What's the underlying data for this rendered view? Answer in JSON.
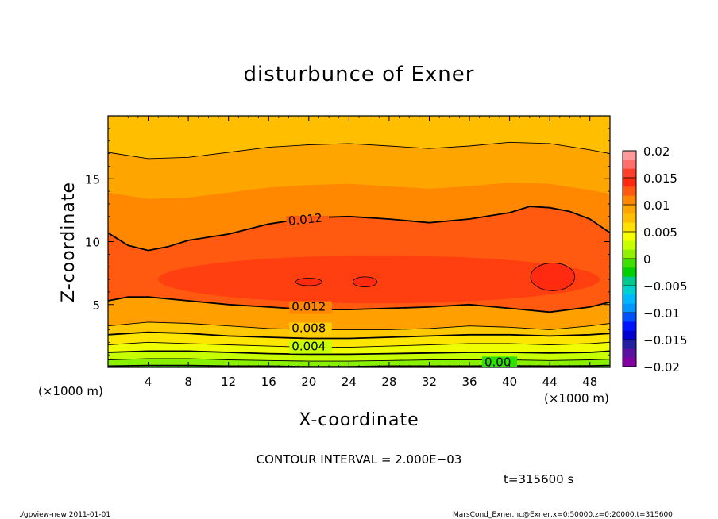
{
  "chart_data": {
    "type": "contour",
    "title": "disturbunce of Exner",
    "xlabel": "X-coordinate",
    "ylabel": "Z-coordinate",
    "x_unit_left": "(×1000 m)",
    "x_unit_right": "(×1000 m)",
    "xlim": [
      0,
      50
    ],
    "ylim": [
      0,
      20
    ],
    "x_ticks": [
      4,
      8,
      12,
      16,
      20,
      24,
      28,
      32,
      36,
      40,
      44,
      48
    ],
    "y_ticks": [
      5,
      10,
      15
    ],
    "contour_labels": [
      {
        "text": "0.012",
        "x": 18.0,
        "y": 11.3
      },
      {
        "text": "0.012",
        "x": 18.3,
        "y": 4.5
      },
      {
        "text": "0.008",
        "x": 18.3,
        "y": 2.8
      },
      {
        "text": "0.004",
        "x": 18.3,
        "y": 1.35
      },
      {
        "text": "0.00",
        "x": 37.5,
        "y": 0.1
      }
    ],
    "contour_lines": [
      {
        "level": 0.012,
        "bold": true,
        "z": [
          [
            0,
            10.7
          ],
          [
            2,
            9.7
          ],
          [
            4,
            9.3
          ],
          [
            6,
            9.6
          ],
          [
            8,
            10.1
          ],
          [
            12,
            10.6
          ],
          [
            16,
            11.4
          ],
          [
            20,
            11.9
          ],
          [
            24,
            12.0
          ],
          [
            28,
            11.8
          ],
          [
            32,
            11.5
          ],
          [
            36,
            11.8
          ],
          [
            40,
            12.3
          ],
          [
            42,
            12.8
          ],
          [
            44,
            12.7
          ],
          [
            46,
            12.4
          ],
          [
            48,
            11.8
          ],
          [
            50,
            10.7
          ]
        ]
      },
      {
        "level": 0.01,
        "bold": false,
        "z": [
          [
            0,
            17.1
          ],
          [
            4,
            16.6
          ],
          [
            8,
            16.7
          ],
          [
            12,
            17.1
          ],
          [
            16,
            17.5
          ],
          [
            20,
            17.7
          ],
          [
            24,
            17.8
          ],
          [
            28,
            17.6
          ],
          [
            32,
            17.4
          ],
          [
            36,
            17.6
          ],
          [
            40,
            17.9
          ],
          [
            44,
            17.8
          ],
          [
            48,
            17.3
          ],
          [
            50,
            17.0
          ]
        ]
      },
      {
        "level": 0.012,
        "bold": true,
        "z": [
          [
            0,
            5.3
          ],
          [
            2,
            5.6
          ],
          [
            4,
            5.6
          ],
          [
            8,
            5.3
          ],
          [
            12,
            5.0
          ],
          [
            16,
            4.8
          ],
          [
            20,
            4.6
          ],
          [
            24,
            4.6
          ],
          [
            28,
            4.7
          ],
          [
            32,
            4.8
          ],
          [
            36,
            5.0
          ],
          [
            40,
            4.7
          ],
          [
            44,
            4.4
          ],
          [
            48,
            4.8
          ],
          [
            50,
            5.2
          ]
        ]
      },
      {
        "level": 0.01,
        "bold": false,
        "z": [
          [
            0,
            3.3
          ],
          [
            4,
            3.6
          ],
          [
            8,
            3.5
          ],
          [
            12,
            3.3
          ],
          [
            16,
            3.1
          ],
          [
            20,
            3.0
          ],
          [
            24,
            3.0
          ],
          [
            28,
            3.0
          ],
          [
            32,
            3.1
          ],
          [
            36,
            3.3
          ],
          [
            40,
            3.2
          ],
          [
            44,
            3.0
          ],
          [
            48,
            3.3
          ],
          [
            50,
            3.5
          ]
        ]
      },
      {
        "level": 0.008,
        "bold": true,
        "z": [
          [
            0,
            2.6
          ],
          [
            4,
            2.8
          ],
          [
            8,
            2.7
          ],
          [
            12,
            2.5
          ],
          [
            16,
            2.4
          ],
          [
            20,
            2.3
          ],
          [
            24,
            2.3
          ],
          [
            28,
            2.4
          ],
          [
            32,
            2.5
          ],
          [
            36,
            2.6
          ],
          [
            40,
            2.6
          ],
          [
            44,
            2.5
          ],
          [
            48,
            2.6
          ],
          [
            50,
            2.7
          ]
        ]
      },
      {
        "level": 0.006,
        "bold": false,
        "z": [
          [
            0,
            1.8
          ],
          [
            4,
            2.0
          ],
          [
            8,
            1.9
          ],
          [
            12,
            1.8
          ],
          [
            16,
            1.7
          ],
          [
            20,
            1.6
          ],
          [
            24,
            1.6
          ],
          [
            28,
            1.7
          ],
          [
            32,
            1.8
          ],
          [
            36,
            1.9
          ],
          [
            40,
            1.9
          ],
          [
            44,
            1.8
          ],
          [
            48,
            1.9
          ],
          [
            50,
            2.0
          ]
        ]
      },
      {
        "level": 0.004,
        "bold": true,
        "z": [
          [
            0,
            1.2
          ],
          [
            4,
            1.3
          ],
          [
            8,
            1.3
          ],
          [
            12,
            1.2
          ],
          [
            16,
            1.1
          ],
          [
            20,
            1.05
          ],
          [
            24,
            1.05
          ],
          [
            28,
            1.1
          ],
          [
            32,
            1.15
          ],
          [
            36,
            1.2
          ],
          [
            40,
            1.2
          ],
          [
            44,
            1.15
          ],
          [
            48,
            1.2
          ],
          [
            50,
            1.3
          ]
        ]
      },
      {
        "level": 0.002,
        "bold": false,
        "z": [
          [
            0,
            0.6
          ],
          [
            4,
            0.7
          ],
          [
            8,
            0.7
          ],
          [
            12,
            0.6
          ],
          [
            16,
            0.55
          ],
          [
            20,
            0.5
          ],
          [
            24,
            0.5
          ],
          [
            28,
            0.55
          ],
          [
            32,
            0.6
          ],
          [
            36,
            0.6
          ],
          [
            40,
            0.6
          ],
          [
            44,
            0.55
          ],
          [
            48,
            0.6
          ],
          [
            50,
            0.65
          ]
        ]
      },
      {
        "level": 0.0,
        "bold": true,
        "z": [
          [
            0,
            0.1
          ],
          [
            4,
            0.15
          ],
          [
            8,
            0.15
          ],
          [
            12,
            0.1
          ],
          [
            16,
            0.1
          ],
          [
            20,
            0.05
          ],
          [
            24,
            0.05
          ],
          [
            28,
            0.1
          ],
          [
            32,
            0.1
          ],
          [
            36,
            0.1
          ],
          [
            40,
            0.12
          ],
          [
            44,
            0.1
          ],
          [
            48,
            0.12
          ],
          [
            50,
            0.15
          ]
        ]
      }
    ],
    "max_regions": [
      {
        "cx": 20.0,
        "cy": 6.8,
        "rx": 1.3,
        "ry": 0.3
      },
      {
        "cx": 25.6,
        "cy": 6.8,
        "rx": 1.2,
        "ry": 0.4
      },
      {
        "cx": 44.3,
        "cy": 7.2,
        "rx": 2.2,
        "ry": 1.1
      }
    ],
    "colorbar": {
      "levels": [
        "0.02",
        "0.015",
        "0.01",
        "0.005",
        "0",
        "−0.005",
        "−0.01",
        "−0.015",
        "−0.02"
      ],
      "colors": [
        "#ff9a9a",
        "#ff6d6d",
        "#ff3f2a",
        "#ff2a10",
        "#ff5a10",
        "#ff8800",
        "#ffa500",
        "#ffbf00",
        "#ffe000",
        "#f5ff00",
        "#c8ff00",
        "#8ff000",
        "#3de000",
        "#00d000",
        "#00c890",
        "#00d0d0",
        "#00b7ff",
        "#0096ff",
        "#0050ff",
        "#0014ff",
        "#0000d0",
        "#2020a0",
        "#5a10a0",
        "#8000a0"
      ]
    },
    "contour_interval": "CONTOUR INTERVAL = 2.000E−03",
    "time_label": "t=315600 s"
  },
  "footer": {
    "left": "./gpview-new   2011-01-01",
    "right": "MarsCond_Exner.nc@Exner,x=0:50000,z=0:20000,t=315600"
  },
  "colors": {
    "top_band": "#ffbf00",
    "upper_band": "#ffa500",
    "mid_band": "#ff8800",
    "core": "#ff5a10",
    "inner_core": "#ff3f10",
    "peak": "#ff2a10"
  }
}
